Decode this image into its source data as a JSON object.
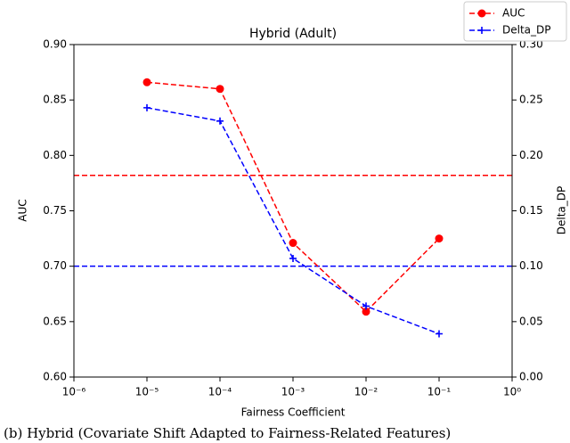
{
  "chart_data": {
    "type": "line",
    "title": "Hybrid (Adult)",
    "xlabel": "Fairness Coefficient",
    "ylabel": "AUC",
    "y2label": "Delta_DP",
    "caption": "(b) Hybrid (Covariate Shift Adapted to Fairness-Related Features)",
    "xscale": "log",
    "xlim": [
      1e-06,
      1
    ],
    "xticks": [
      {
        "value": 1e-06,
        "label": "10⁻⁶"
      },
      {
        "value": 1e-05,
        "label": "10⁻⁵"
      },
      {
        "value": 0.0001,
        "label": "10⁻⁴"
      },
      {
        "value": 0.001,
        "label": "10⁻³"
      },
      {
        "value": 0.01,
        "label": "10⁻²"
      },
      {
        "value": 0.1,
        "label": "10⁻¹"
      },
      {
        "value": 1,
        "label": "10⁰"
      }
    ],
    "ylim": [
      0.6,
      0.9
    ],
    "yticks": [
      {
        "value": 0.6,
        "label": "0.60"
      },
      0.65,
      {
        "value": 0.7,
        "label": "0.70"
      },
      0.75,
      {
        "value": 0.8,
        "label": "0.80"
      },
      0.85,
      {
        "value": 0.9,
        "label": "0.90"
      }
    ],
    "y2lim": [
      0,
      0.3
    ],
    "y2ticks": [
      {
        "value": 0,
        "label": "0.00"
      },
      0.05,
      {
        "value": 0.1,
        "label": "0.10"
      },
      0.15,
      {
        "value": 0.2,
        "label": "0.20"
      },
      0.25,
      {
        "value": 0.3,
        "label": "0.30"
      }
    ],
    "x": [
      1e-05,
      0.0001,
      0.001,
      0.01,
      0.1
    ],
    "series": [
      {
        "name": "AUC",
        "color": "#ff0000",
        "marker": "circle",
        "axis": "y",
        "values": [
          0.866,
          0.86,
          0.721,
          0.659,
          0.725
        ]
      },
      {
        "name": "Delta_DP",
        "color": "#0000ff",
        "marker": "plus",
        "axis": "y2",
        "values": [
          0.243,
          0.231,
          0.107,
          0.064,
          0.039
        ]
      }
    ],
    "hlines": [
      {
        "value": 0.782,
        "color": "#ff0000",
        "axis": "y"
      },
      {
        "value": 0.1,
        "color": "#0000ff",
        "axis": "y2"
      }
    ],
    "legend": "upper right"
  }
}
